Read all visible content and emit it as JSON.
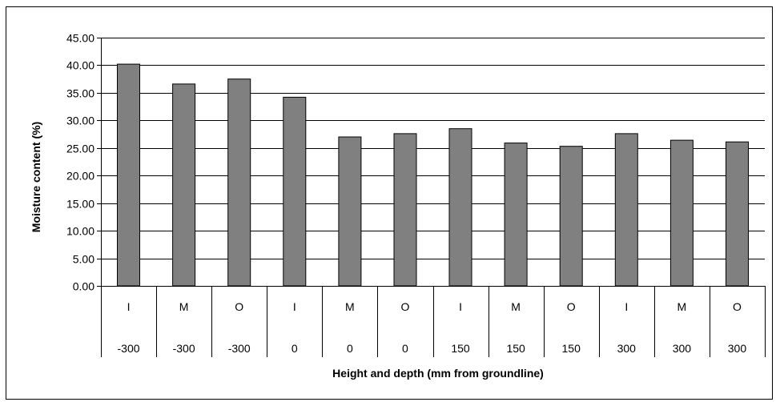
{
  "chart_data": {
    "type": "bar",
    "title": "",
    "ylabel": "Moisture content (%)",
    "xlabel": "Height and depth (mm from groundline)",
    "ylim": [
      0,
      45
    ],
    "ytick_step": 5,
    "yticks": [
      "0.00",
      "5.00",
      "10.00",
      "15.00",
      "20.00",
      "25.00",
      "30.00",
      "35.00",
      "40.00",
      "45.00"
    ],
    "grid": true,
    "legend": "none",
    "categories": [
      {
        "position": "I",
        "height": "-300"
      },
      {
        "position": "M",
        "height": "-300"
      },
      {
        "position": "O",
        "height": "-300"
      },
      {
        "position": "I",
        "height": "0"
      },
      {
        "position": "M",
        "height": "0"
      },
      {
        "position": "O",
        "height": "0"
      },
      {
        "position": "I",
        "height": "150"
      },
      {
        "position": "M",
        "height": "150"
      },
      {
        "position": "O",
        "height": "150"
      },
      {
        "position": "I",
        "height": "300"
      },
      {
        "position": "M",
        "height": "300"
      },
      {
        "position": "O",
        "height": "300"
      }
    ],
    "values": [
      40.2,
      36.6,
      37.5,
      34.2,
      27.0,
      27.6,
      28.5,
      25.9,
      25.3,
      27.6,
      26.4,
      26.1
    ],
    "bar_color": "#808080"
  }
}
